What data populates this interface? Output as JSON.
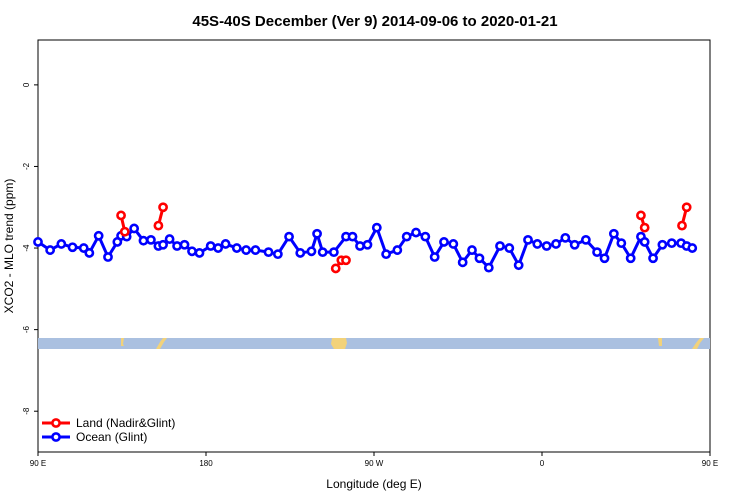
{
  "chart_data": {
    "type": "line",
    "title": "45S-40S December (Ver 9)   2014-09-06 to 2020-01-21",
    "xlabel": "Longitude (deg E)",
    "ylabel": "XCO2 - MLO trend (ppm)",
    "xlim": [
      90,
      450
    ],
    "ylim": [
      -9,
      1.1
    ],
    "x_ticks": [
      {
        "value": 90,
        "label": "90 E"
      },
      {
        "value": 180,
        "label": "180"
      },
      {
        "value": 270,
        "label": "90 W"
      },
      {
        "value": 360,
        "label": "0"
      },
      {
        "value": 450,
        "label": "90 E"
      },
      {
        "value": 540,
        "label": "180"
      }
    ],
    "y_ticks": [
      0,
      -2,
      -4,
      -6,
      -8
    ],
    "legend_position": "bottom-left",
    "series": [
      {
        "name": "Land (Nadir&Glint)",
        "color": "#ff0000",
        "segments": [
          [
            [
              134.5,
              -3.2
            ],
            [
              136.5,
              -3.6
            ]
          ],
          [
            [
              154.5,
              -3.45
            ],
            [
              157,
              -3.0
            ]
          ],
          [
            [
              249.5,
              -4.5
            ],
            [
              252.5,
              -4.3
            ],
            [
              255,
              -4.3
            ]
          ],
          [
            [
              413,
              -3.2
            ],
            [
              415,
              -3.5
            ]
          ],
          [
            [
              435,
              -3.45
            ],
            [
              437.5,
              -3.0
            ]
          ]
        ]
      },
      {
        "name": "Ocean (Glint)",
        "color": "#0000ff",
        "x": [
          90,
          96.5,
          102.5,
          108.5,
          114.5,
          117.5,
          122.5,
          127.5,
          132.5,
          134.5,
          137.5,
          141.5,
          146.5,
          150.5,
          154.5,
          157,
          160.5,
          164.5,
          168.5,
          172.5,
          176.5,
          182.5,
          186.5,
          190.5,
          196.5,
          201.5,
          206.5,
          213.5,
          218.5,
          224.5,
          230.5,
          236.5,
          239.5,
          242.5,
          248.5,
          255,
          258.5,
          262.5,
          266.5,
          271.5,
          276.5,
          282.5,
          287.5,
          292.5,
          297.5,
          302.5,
          307.5,
          312.5,
          317.5,
          322.5,
          326.5,
          331.5,
          337.5,
          342.5,
          347.5,
          352.5,
          357.5,
          362.5,
          367.5,
          372.5,
          377.5,
          383.5,
          389.5,
          393.5,
          398.5,
          402.5,
          407.5,
          413,
          415,
          419.5,
          424.5,
          429.5,
          434.5,
          437.5,
          440.5
        ],
        "values": [
          -3.85,
          -4.05,
          -3.9,
          -3.98,
          -4.0,
          -4.12,
          -3.7,
          -4.22,
          -3.85,
          -3.7,
          -3.72,
          -3.52,
          -3.82,
          -3.8,
          -3.95,
          -3.92,
          -3.78,
          -3.95,
          -3.92,
          -4.08,
          -4.12,
          -3.95,
          -4.0,
          -3.9,
          -4.0,
          -4.05,
          -4.05,
          -4.1,
          -4.15,
          -3.72,
          -4.12,
          -4.08,
          -3.65,
          -4.1,
          -4.1,
          -3.72,
          -3.72,
          -3.95,
          -3.92,
          -3.5,
          -4.15,
          -4.05,
          -3.72,
          -3.62,
          -3.72,
          -4.22,
          -3.85,
          -3.9,
          -4.35,
          -4.05,
          -4.25,
          -4.48,
          -3.95,
          -4.0,
          -4.42,
          -3.8,
          -3.9,
          -3.95,
          -3.9,
          -3.75,
          -3.92,
          -3.8,
          -4.1,
          -4.25,
          -3.65,
          -3.88,
          -4.25,
          -3.72,
          -3.85,
          -4.25,
          -3.92,
          -3.88,
          -3.88,
          -3.95,
          -4.0
        ]
      }
    ]
  }
}
